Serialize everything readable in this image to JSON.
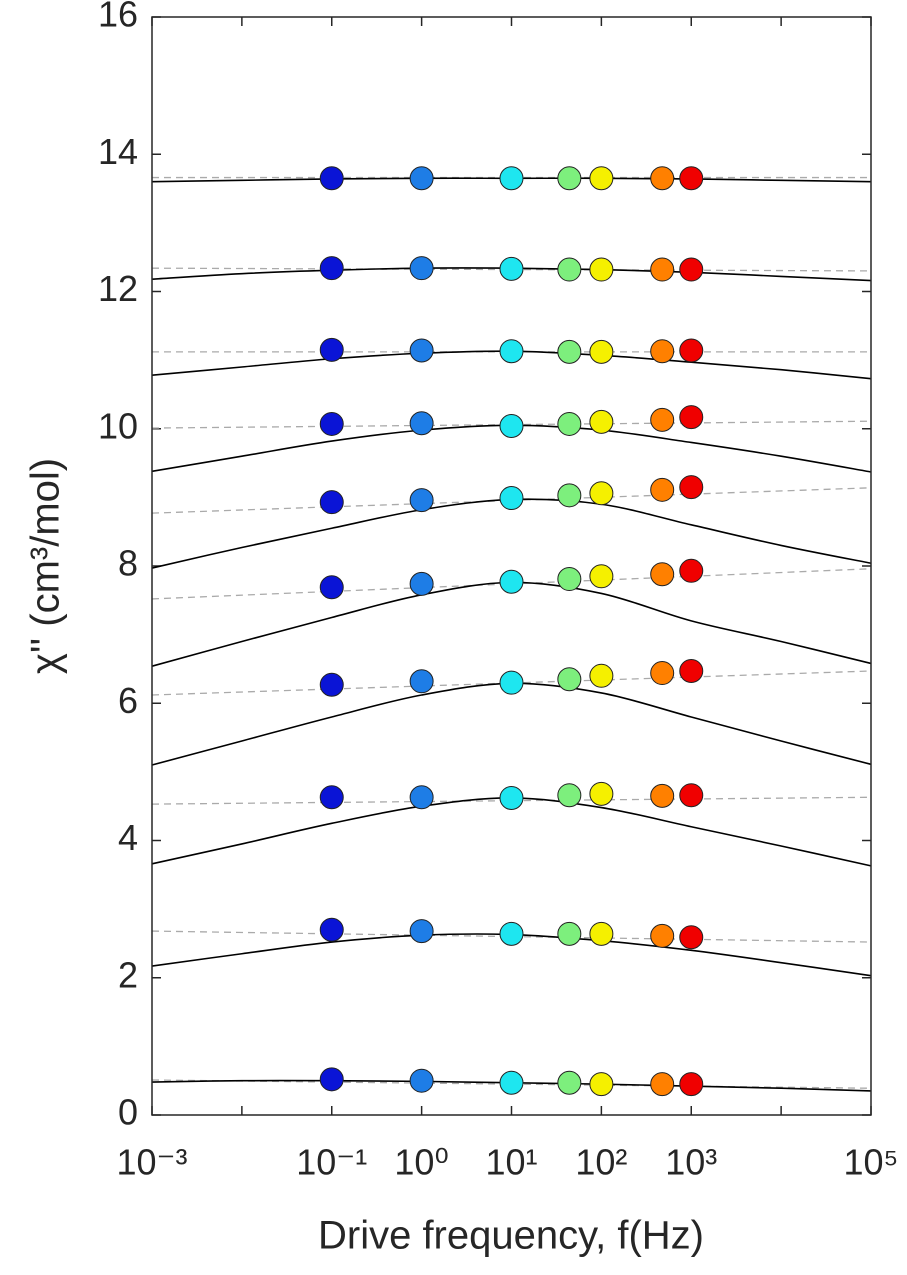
{
  "chart_data": {
    "type": "scatter",
    "xlabel": "Drive frequency, f(Hz)",
    "ylabel": "χ'' (cm³/mol)",
    "xscale": "log",
    "xlim": [
      0.001,
      100000
    ],
    "ylim": [
      0,
      16
    ],
    "xticks": [
      {
        "value": 0.001,
        "label": "10⁻³"
      },
      {
        "value": 0.1,
        "label": "10⁻¹"
      },
      {
        "value": 1,
        "label": "10⁰"
      },
      {
        "value": 10,
        "label": "10¹"
      },
      {
        "value": 100,
        "label": "10²"
      },
      {
        "value": 1000,
        "label": "10³"
      },
      {
        "value": 100000,
        "label": "10⁵"
      }
    ],
    "xminorticks": [
      0.01,
      10000
    ],
    "yticks": [
      0,
      2,
      4,
      6,
      8,
      10,
      12,
      14,
      16
    ],
    "x": [
      0.1,
      1,
      10,
      44,
      100,
      475,
      1000
    ],
    "marker_colors": [
      "#0a14d6",
      "#1e7de6",
      "#1ee6f0",
      "#7def7d",
      "#f5f000",
      "#ff8000",
      "#f00000"
    ],
    "series": [
      {
        "values": [
          13.65,
          13.65,
          13.65,
          13.65,
          13.65,
          13.65,
          13.65
        ]
      },
      {
        "values": [
          12.34,
          12.34,
          12.33,
          12.32,
          12.32,
          12.32,
          12.32
        ]
      },
      {
        "values": [
          11.15,
          11.14,
          11.13,
          11.12,
          11.12,
          11.13,
          11.14
        ]
      },
      {
        "values": [
          10.07,
          10.08,
          10.04,
          10.07,
          10.1,
          10.13,
          10.17
        ]
      },
      {
        "values": [
          8.93,
          8.96,
          8.99,
          9.03,
          9.06,
          9.11,
          9.15
        ]
      },
      {
        "values": [
          7.69,
          7.74,
          7.77,
          7.81,
          7.85,
          7.88,
          7.93
        ]
      },
      {
        "values": [
          6.27,
          6.32,
          6.3,
          6.35,
          6.4,
          6.44,
          6.47
        ]
      },
      {
        "values": [
          4.63,
          4.63,
          4.62,
          4.66,
          4.68,
          4.65,
          4.66
        ]
      },
      {
        "values": [
          2.7,
          2.68,
          2.64,
          2.64,
          2.64,
          2.61,
          2.59
        ]
      },
      {
        "values": [
          0.52,
          0.5,
          0.47,
          0.47,
          0.45,
          0.45,
          0.45
        ]
      }
    ],
    "fit_curves": {
      "color": "#000000",
      "x": [
        0.001,
        0.01,
        0.1,
        1,
        10,
        100,
        1000,
        10000,
        100000
      ],
      "series": [
        {
          "values": [
            13.6,
            13.62,
            13.64,
            13.65,
            13.65,
            13.65,
            13.64,
            13.62,
            13.6
          ]
        },
        {
          "values": [
            12.18,
            12.26,
            12.31,
            12.34,
            12.34,
            12.32,
            12.28,
            12.22,
            12.16
          ]
        },
        {
          "values": [
            10.78,
            10.9,
            11.02,
            11.1,
            11.13,
            11.07,
            10.97,
            10.86,
            10.73
          ]
        },
        {
          "values": [
            9.38,
            9.6,
            9.82,
            9.98,
            10.05,
            9.98,
            9.8,
            9.6,
            9.37
          ]
        },
        {
          "values": [
            7.97,
            8.27,
            8.55,
            8.82,
            8.97,
            8.9,
            8.6,
            8.3,
            8.04
          ]
        },
        {
          "values": [
            6.54,
            6.9,
            7.25,
            7.58,
            7.76,
            7.6,
            7.2,
            6.9,
            6.58
          ]
        },
        {
          "values": [
            5.1,
            5.45,
            5.8,
            6.12,
            6.29,
            6.15,
            5.8,
            5.45,
            5.11
          ]
        },
        {
          "values": [
            3.66,
            3.95,
            4.25,
            4.5,
            4.62,
            4.48,
            4.2,
            3.92,
            3.63
          ]
        },
        {
          "values": [
            2.17,
            2.35,
            2.52,
            2.62,
            2.63,
            2.54,
            2.4,
            2.22,
            2.03
          ]
        },
        {
          "values": [
            0.48,
            0.5,
            0.5,
            0.49,
            0.47,
            0.45,
            0.42,
            0.39,
            0.35
          ]
        }
      ]
    },
    "trend_lines": {
      "color": "#aaaaaa",
      "dashed": true,
      "x": [
        0.001,
        100000
      ],
      "series": [
        {
          "values": [
            13.66,
            13.66
          ]
        },
        {
          "values": [
            12.34,
            12.3
          ]
        },
        {
          "values": [
            11.12,
            11.12
          ]
        },
        {
          "values": [
            10.01,
            10.11
          ]
        },
        {
          "values": [
            8.77,
            9.14
          ]
        },
        {
          "values": [
            7.52,
            7.96
          ]
        },
        {
          "values": [
            6.12,
            6.47
          ]
        },
        {
          "values": [
            4.53,
            4.63
          ]
        },
        {
          "values": [
            2.68,
            2.52
          ]
        },
        {
          "values": [
            0.51,
            0.39
          ]
        }
      ]
    }
  }
}
